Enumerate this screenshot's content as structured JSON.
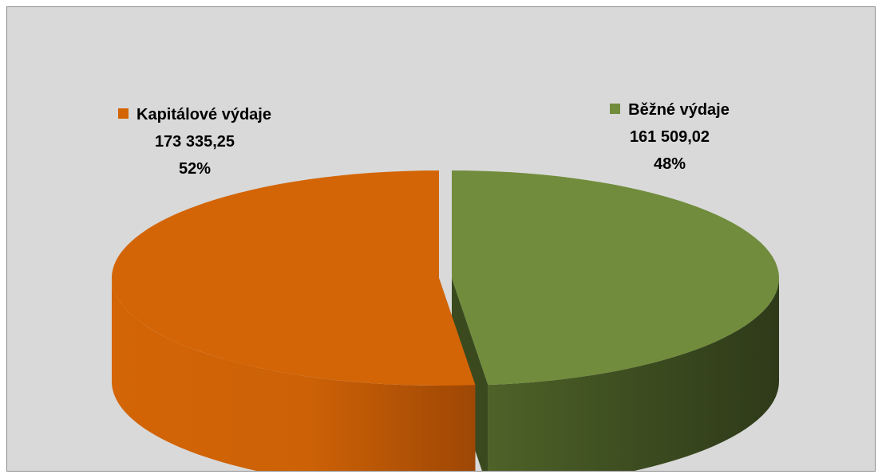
{
  "chart_data": {
    "type": "pie",
    "title": "",
    "slices": [
      {
        "name": "Kapitálové výdaje",
        "value": 173335.25,
        "value_label": "173 335,25",
        "percent_label": "52%",
        "color": "#d36506",
        "side_dark": "#9e4705"
      },
      {
        "name": "Běžné výdaje",
        "value": 161509.02,
        "value_label": "161 509,02",
        "percent_label": "48%",
        "color": "#718c3c",
        "side_dark": "#2e3a19"
      }
    ],
    "style": "3d",
    "exploded": true
  },
  "colors": {
    "background": "#d9d9d9",
    "border": "#8c8c8c"
  }
}
